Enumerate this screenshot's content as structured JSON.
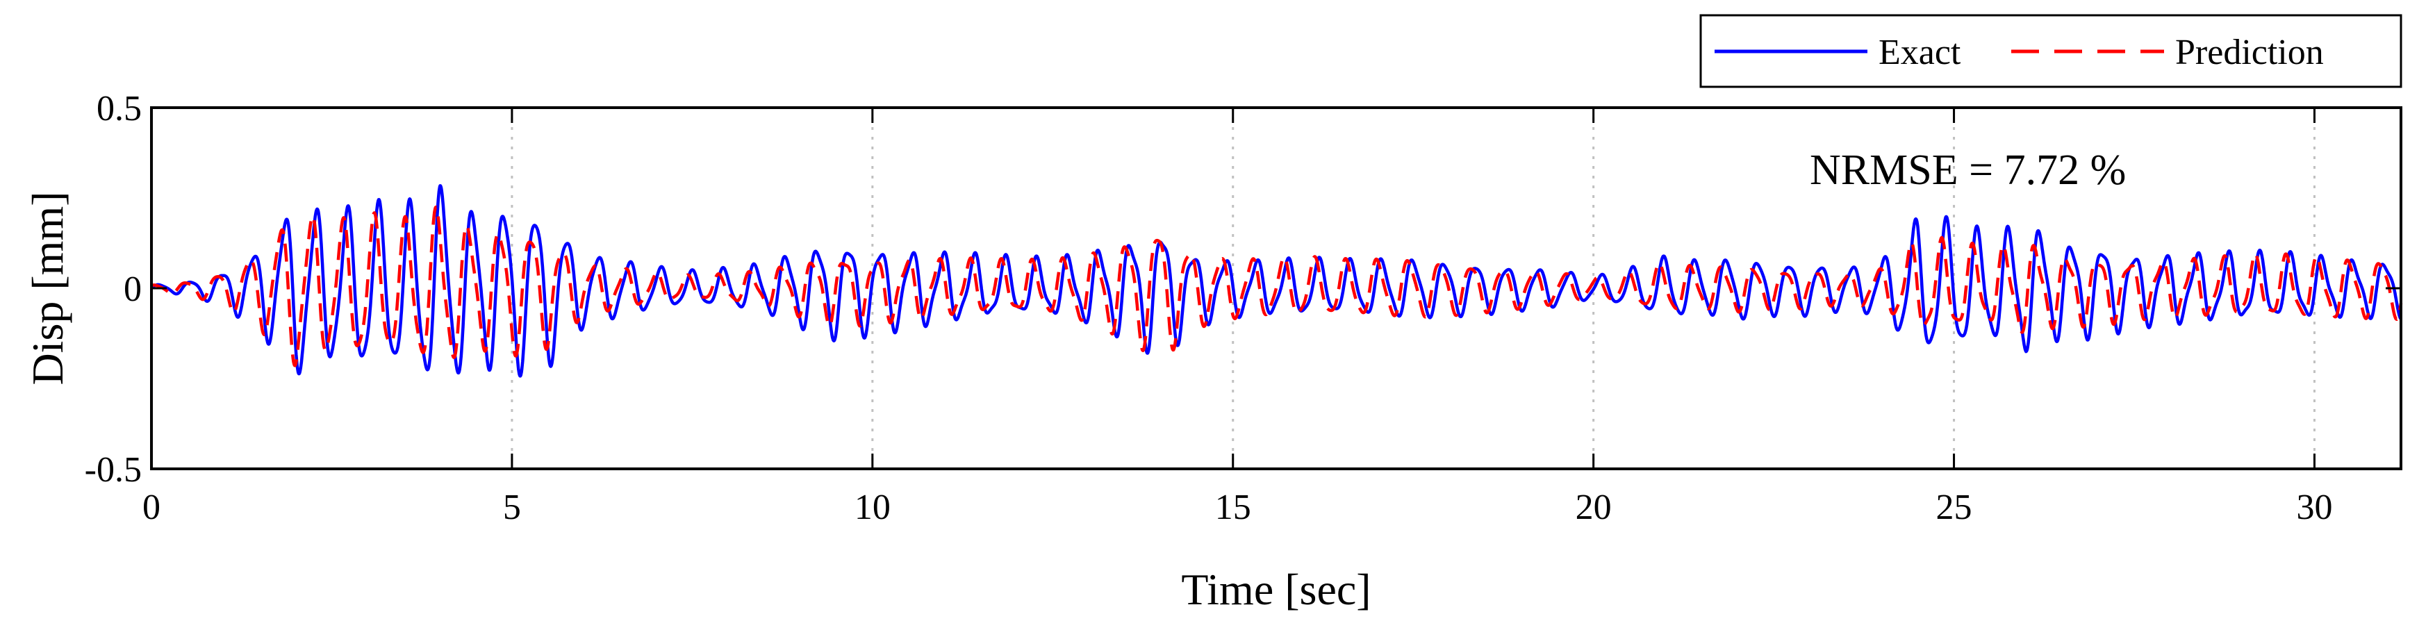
{
  "chart_data": {
    "type": "line",
    "xlabel": "Time [sec]",
    "ylabel": "Disp [mm]",
    "xlim": [
      0,
      31.2
    ],
    "ylim": [
      -0.5,
      0.5
    ],
    "xticks": [
      0,
      5,
      10,
      15,
      20,
      25,
      30
    ],
    "yticks": [
      -0.5,
      0,
      0.5
    ],
    "xtick_labels": [
      "0",
      "5",
      "10",
      "15",
      "20",
      "25",
      "30"
    ],
    "ytick_labels": [
      "-0.5",
      "0",
      "0.5"
    ],
    "grid": "x-dotted",
    "legend_position": "top-right-outside",
    "annotation": "NRMSE = 7.72 %",
    "colors": {
      "exact": "#0000ff",
      "prediction": "#ff0000",
      "grid": "#c0c0c0"
    },
    "envelope": {
      "t": [
        0,
        0.5,
        1.0,
        1.5,
        2.0,
        2.5,
        3.0,
        3.5,
        4.0,
        4.5,
        5.0,
        5.5,
        6.0,
        6.5,
        7.0,
        7.5,
        8.0,
        8.5,
        9.0,
        9.5,
        10.0,
        10.5,
        11.0,
        11.5,
        12.0,
        12.5,
        13.0,
        13.5,
        14.0,
        14.5,
        15.0,
        15.5,
        16.0,
        16.5,
        17.0,
        17.5,
        18.0,
        18.5,
        19.0,
        19.5,
        20.0,
        20.5,
        21.0,
        21.5,
        22.0,
        22.5,
        23.0,
        23.5,
        24.0,
        24.5,
        25.0,
        25.5,
        26.0,
        26.5,
        27.0,
        27.5,
        28.0,
        28.5,
        29.0,
        29.5,
        30.0,
        30.5,
        31.2
      ],
      "amplitude": [
        0.01,
        0.02,
        0.05,
        0.12,
        0.24,
        0.2,
        0.22,
        0.21,
        0.26,
        0.2,
        0.22,
        0.2,
        0.1,
        0.08,
        0.06,
        0.05,
        0.06,
        0.08,
        0.13,
        0.17,
        0.16,
        0.15,
        0.14,
        0.13,
        0.12,
        0.12,
        0.15,
        0.2,
        0.26,
        0.14,
        0.11,
        0.1,
        0.1,
        0.09,
        0.09,
        0.09,
        0.08,
        0.07,
        0.06,
        0.05,
        0.03,
        0.05,
        0.08,
        0.07,
        0.08,
        0.07,
        0.07,
        0.06,
        0.08,
        0.2,
        0.2,
        0.17,
        0.22,
        0.17,
        0.17,
        0.14,
        0.14,
        0.14,
        0.14,
        0.14,
        0.13,
        0.12,
        0.11
      ]
    },
    "series": [
      {
        "name": "Exact",
        "style": "solid",
        "frequency_hz": 2.3,
        "phase": 0.0,
        "amp_scale": 1.0
      },
      {
        "name": "Prediction",
        "style": "dashed",
        "frequency_hz": 2.3,
        "phase": 0.9,
        "amp_scale": 0.85
      }
    ]
  }
}
